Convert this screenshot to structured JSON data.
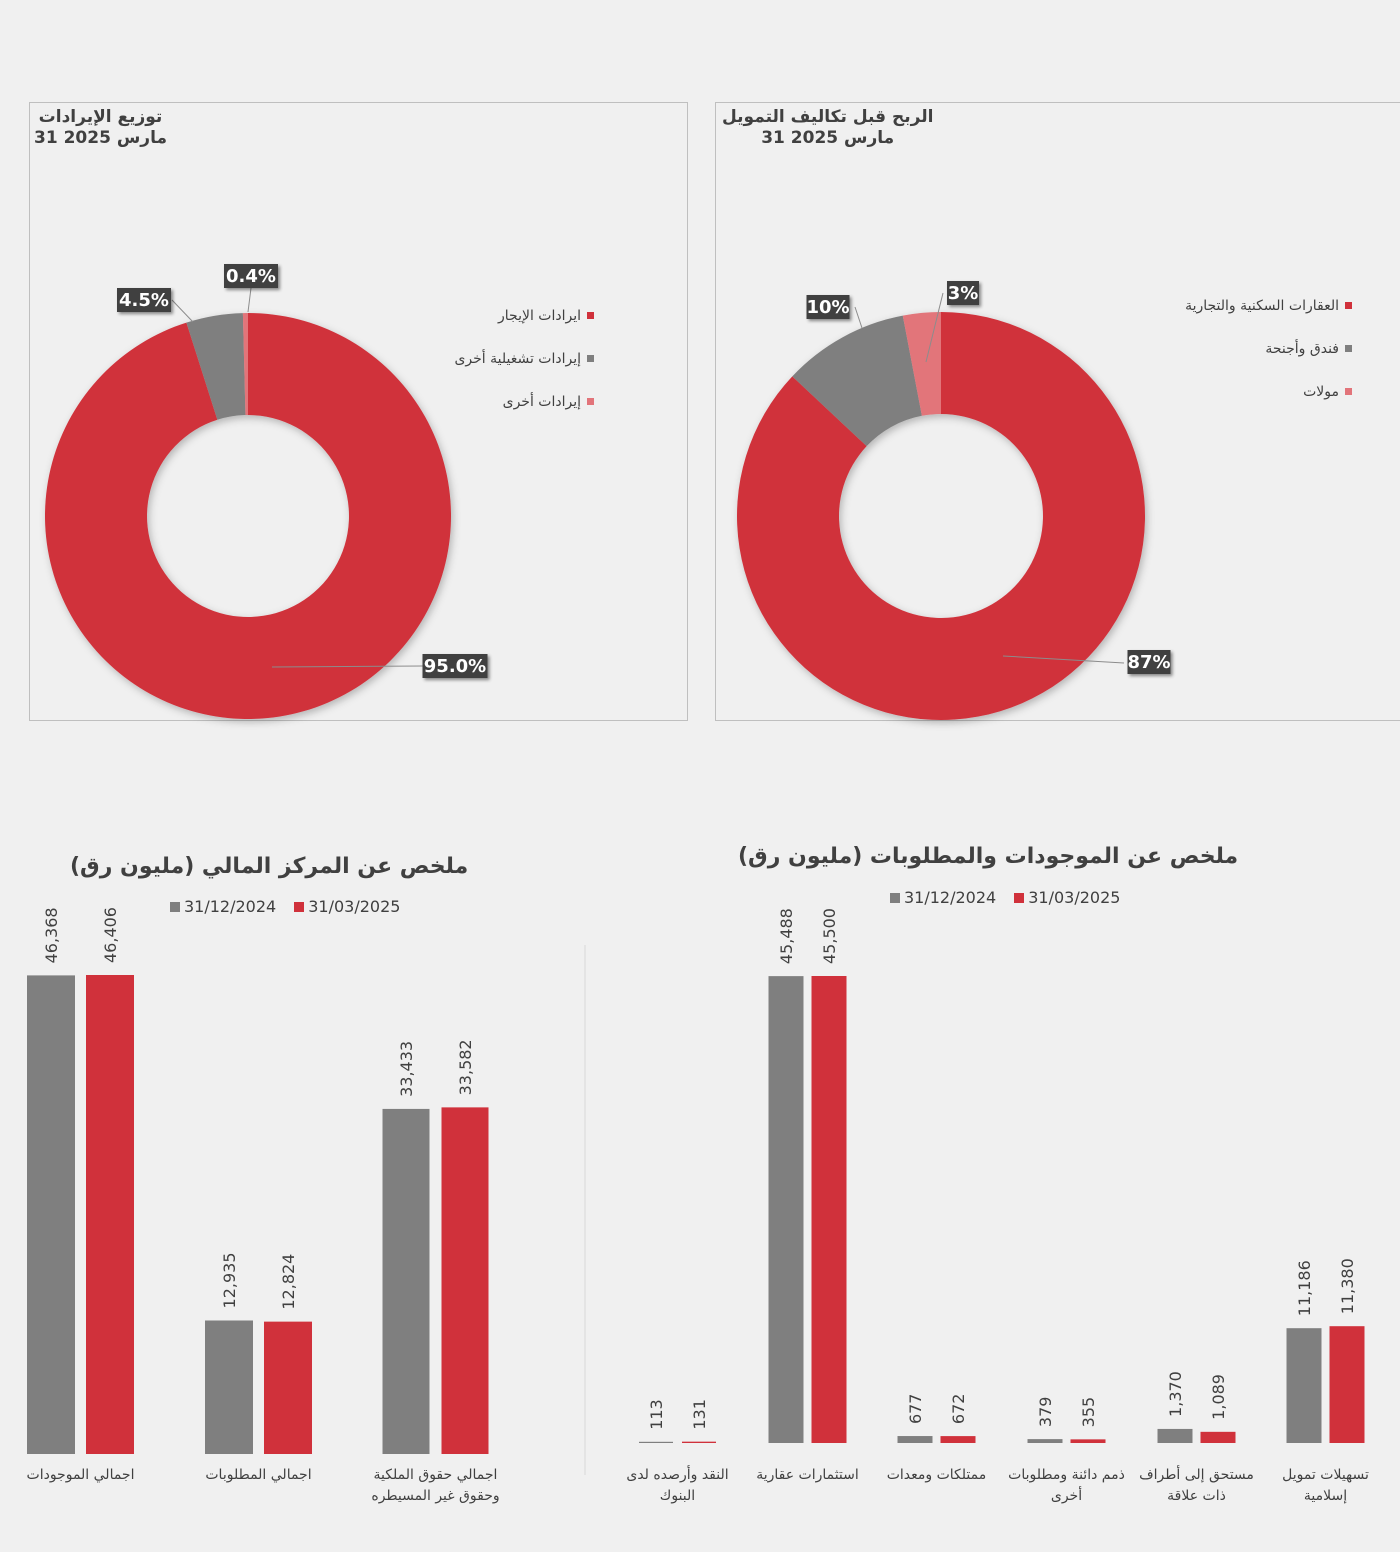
{
  "colors": {
    "red": "#d0313b",
    "gray": "#7f7f7f",
    "pink": "#e2747a"
  },
  "chart_data": [
    {
      "type": "pie",
      "variant": "donut",
      "title": "توزيع الإيرادات",
      "subtitle": "31 مارس 2025",
      "series": [
        {
          "name": "ايرادات الإيجار",
          "value": 95.0,
          "label": "95.0%",
          "color": "#d0313b"
        },
        {
          "name": "إيرادات تشغيلية أخرى",
          "value": 4.5,
          "label": "4.5%",
          "color": "#7f7f7f"
        },
        {
          "name": "إيرادات أخرى",
          "value": 0.4,
          "label": "0.4%",
          "color": "#e2747a"
        }
      ],
      "legend_position": "right"
    },
    {
      "type": "pie",
      "variant": "donut",
      "title": "الربح قبل تكاليف التمويل",
      "subtitle": "31 مارس 2025",
      "series": [
        {
          "name": "العقارات السكنية والتجارية",
          "value": 87,
          "label": "87%",
          "color": "#d0313b"
        },
        {
          "name": "فندق وأجنحة",
          "value": 10,
          "label": "10%",
          "color": "#7f7f7f"
        },
        {
          "name": "مولات",
          "value": 3,
          "label": "3%",
          "color": "#e2747a"
        }
      ],
      "legend_position": "right"
    },
    {
      "type": "bar",
      "title": "ملخص عن المركز المالي (مليون رق)",
      "categories": [
        "اجمالي الموجودات",
        "اجمالي المطلوبات",
        "اجمالي حقوق الملكية|وحقوق غير المسيطره"
      ],
      "series": [
        {
          "name": "31/12/2024",
          "values": [
            46368,
            12935,
            33433
          ],
          "labels": [
            "46,368",
            "12,935",
            "33,433"
          ],
          "color": "#7f7f7f"
        },
        {
          "name": "31/03/2025",
          "values": [
            46406,
            12824,
            33582
          ],
          "labels": [
            "46,406",
            "12,824",
            "33,582"
          ],
          "color": "#d0313b"
        }
      ],
      "ylim": [
        0,
        50000
      ],
      "grid": false,
      "legend_position": "top"
    },
    {
      "type": "bar",
      "title": "ملخص عن الموجودات والمطلوبات (مليون رق)",
      "categories": [
        "النقد وأرصده لدى|البنوك",
        "استثمارات عقارية",
        "ممتلكات ومعدات",
        "ذمم دائنة ومطلوبات|أخرى",
        "مستحق إلى أطراف|ذات علاقة",
        "تسهيلات تمويل|إسلامية"
      ],
      "series": [
        {
          "name": "31/12/2024",
          "values": [
            113,
            45488,
            677,
            379,
            1370,
            11186
          ],
          "labels": [
            "113",
            "45,488",
            "677",
            "379",
            "1,370",
            "11,186"
          ],
          "color": "#7f7f7f"
        },
        {
          "name": "31/03/2025",
          "values": [
            131,
            45500,
            672,
            355,
            1089,
            11380
          ],
          "labels": [
            "131",
            "45,500",
            "672",
            "355",
            "1,089",
            "11,380"
          ],
          "color": "#d0313b"
        }
      ],
      "ylim": [
        0,
        50000
      ],
      "grid": false,
      "legend_position": "top"
    }
  ]
}
